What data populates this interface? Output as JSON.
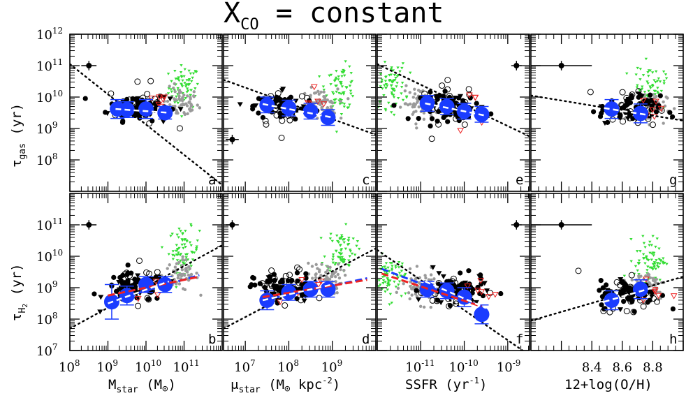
{
  "figure": {
    "title_main": "X",
    "title_sub": "CO",
    "title_rest": " = constant"
  },
  "colors": {
    "observed_filled": "#000000",
    "observed_open": "#000000",
    "grey_points": "#9a9a9a",
    "green_points": "#33dd33",
    "red_points": "#ee2222",
    "binned_means": "#1a3cff",
    "fit_blue": "#1a3cff",
    "fit_red": "#ee2222",
    "fit_white": "#ffffff",
    "fit_dotted": "#000000"
  },
  "y_axes": {
    "top": {
      "label_main": "τ",
      "label_sub": "gas",
      "label_unit": "(yr)",
      "ylim_log": [
        7,
        12
      ],
      "tick_labels": [
        {
          "exp": 8,
          "text": "10",
          "sup": "8"
        },
        {
          "exp": 9,
          "text": "10",
          "sup": "9"
        },
        {
          "exp": 10,
          "text": "10",
          "sup": "10"
        },
        {
          "exp": 11,
          "text": "10",
          "sup": "11"
        },
        {
          "exp": 12,
          "text": "10",
          "sup": "12"
        }
      ]
    },
    "bottom": {
      "label_main": "τ",
      "label_sub": "H",
      "label_subsub": "2",
      "label_unit": "(yr)",
      "ylim_log": [
        7,
        12
      ],
      "tick_labels": [
        {
          "exp": 7,
          "text": "10",
          "sup": "7"
        },
        {
          "exp": 8,
          "text": "10",
          "sup": "8"
        },
        {
          "exp": 9,
          "text": "10",
          "sup": "9"
        },
        {
          "exp": 10,
          "text": "10",
          "sup": "10"
        },
        {
          "exp": 11,
          "text": "10",
          "sup": "11"
        }
      ]
    }
  },
  "x_axes": [
    {
      "id": "mstar",
      "xlim": [
        8,
        12
      ],
      "log_ticks": true,
      "tick_labels": [
        {
          "v": 8,
          "text": "10",
          "sup": "8"
        },
        {
          "v": 9,
          "text": "10",
          "sup": "9"
        },
        {
          "v": 10,
          "text": "10",
          "sup": "10"
        },
        {
          "v": 11,
          "text": "10",
          "sup": "11"
        }
      ],
      "label": {
        "main": "M",
        "sub": "star",
        "rest": "  (M",
        "sun": "⊙",
        "end": ")"
      }
    },
    {
      "id": "mustar",
      "xlim": [
        6.5,
        10
      ],
      "log_ticks": true,
      "tick_labels": [
        {
          "v": 7,
          "text": "10",
          "sup": "7"
        },
        {
          "v": 8,
          "text": "10",
          "sup": "8"
        },
        {
          "v": 9,
          "text": "10",
          "sup": "9"
        }
      ],
      "label": {
        "main": "μ",
        "sub": "star",
        "rest": "  (M",
        "sun": "⊙",
        "end": " kpc",
        "sup": "-2",
        "end2": ")"
      }
    },
    {
      "id": "ssfr",
      "xlim": [
        -12,
        -8.5
      ],
      "log_ticks": true,
      "tick_labels": [
        {
          "v": -11,
          "text": "10",
          "sup": "-11"
        },
        {
          "v": -10,
          "text": "10",
          "sup": "-10"
        },
        {
          "v": -9,
          "text": "10",
          "sup": "-9"
        }
      ],
      "label": {
        "main": "SSFR",
        "rest": "   (yr",
        "sup": "-1",
        "end": ")"
      }
    },
    {
      "id": "oh",
      "xlim": [
        8.0,
        9.0
      ],
      "log_ticks": false,
      "tick_labels": [
        {
          "v": 8.4,
          "text": "8.4"
        },
        {
          "v": 8.6,
          "text": "8.6"
        },
        {
          "v": 8.8,
          "text": "8.8"
        }
      ],
      "label": {
        "main": "12+log(O/H)"
      }
    }
  ],
  "chart_data": [
    {
      "panel": "a",
      "type": "scatter",
      "x_var": "log M_star",
      "y_var": "log tau_gas",
      "binned_means": [
        {
          "x": 9.25,
          "y": 9.62,
          "err": 0.3
        },
        {
          "x": 9.5,
          "y": 9.6,
          "err": 0.25
        },
        {
          "x": 10.0,
          "y": 9.62,
          "err": 0.3
        },
        {
          "x": 10.5,
          "y": 9.5,
          "err": 0.2
        }
      ],
      "fit_dotted": [
        [
          8.0,
          11.05
        ],
        [
          12.0,
          7.2
        ]
      ],
      "fit_white": [
        [
          9.2,
          9.62
        ],
        [
          10.6,
          9.5
        ]
      ],
      "error_cross": {
        "x": 8.5,
        "y": 11.0,
        "xerr": 0.2,
        "yerr": 0.15
      },
      "centers": {
        "black": [
          9.8,
          9.7
        ],
        "grey": [
          10.9,
          9.8
        ],
        "green": [
          11.0,
          10.3
        ]
      }
    },
    {
      "panel": "b",
      "type": "scatter",
      "x_var": "log M_star",
      "y_var": "log tau_H2",
      "binned_means": [
        {
          "x": 9.1,
          "y": 8.55,
          "err": 0.55
        },
        {
          "x": 9.5,
          "y": 8.75,
          "err": 0.3
        },
        {
          "x": 10.0,
          "y": 9.1,
          "err": 0.25
        },
        {
          "x": 10.5,
          "y": 9.1,
          "err": 0.25
        }
      ],
      "fit_dotted": [
        [
          8.0,
          7.7
        ],
        [
          12.0,
          10.35
        ]
      ],
      "fit_blue": [
        [
          9.0,
          8.55
        ],
        [
          11.4,
          9.4
        ]
      ],
      "fit_red": [
        [
          9.0,
          8.75
        ],
        [
          11.4,
          9.35
        ]
      ],
      "fit_white": [
        [
          9.0,
          8.5
        ],
        [
          10.6,
          9.2
        ]
      ],
      "error_cross": {
        "x": 8.5,
        "y": 11.0,
        "xerr": 0.2,
        "yerr": 0.15
      },
      "centers": {
        "black": [
          9.7,
          9.0
        ],
        "grey": [
          10.9,
          9.4
        ],
        "green": [
          11.0,
          10.2
        ]
      }
    },
    {
      "panel": "c",
      "type": "scatter",
      "x_var": "log mu_star",
      "y_var": "log tau_gas",
      "binned_means": [
        {
          "x": 7.5,
          "y": 9.75,
          "err": 0.25
        },
        {
          "x": 8.0,
          "y": 9.65,
          "err": 0.25
        },
        {
          "x": 8.5,
          "y": 9.55,
          "err": 0.25
        },
        {
          "x": 8.9,
          "y": 9.35,
          "err": 0.25
        }
      ],
      "fit_dotted": [
        [
          6.5,
          10.55
        ],
        [
          10.0,
          8.8
        ]
      ],
      "fit_white": [
        [
          7.4,
          9.78
        ],
        [
          9.0,
          9.35
        ]
      ],
      "error_cross": {
        "x": 6.7,
        "y": 8.65,
        "xerr": 0.15,
        "yerr": 0.15
      },
      "centers": {
        "black": [
          7.9,
          9.7
        ],
        "grey": [
          8.7,
          9.75
        ],
        "green": [
          9.2,
          10.3
        ]
      }
    },
    {
      "panel": "d",
      "type": "scatter",
      "x_var": "log mu_star",
      "y_var": "log tau_H2",
      "binned_means": [
        {
          "x": 7.5,
          "y": 8.6,
          "err": 0.3
        },
        {
          "x": 8.0,
          "y": 8.85,
          "err": 0.25
        },
        {
          "x": 8.5,
          "y": 8.95,
          "err": 0.25
        },
        {
          "x": 8.9,
          "y": 8.95,
          "err": 0.25
        }
      ],
      "fit_dotted": [
        [
          6.5,
          7.7
        ],
        [
          10.0,
          10.25
        ]
      ],
      "fit_blue": [
        [
          7.4,
          8.6
        ],
        [
          9.8,
          9.3
        ]
      ],
      "fit_red": [
        [
          7.4,
          8.7
        ],
        [
          9.8,
          9.25
        ]
      ],
      "fit_white": [
        [
          7.4,
          8.6
        ],
        [
          9.0,
          9.1
        ]
      ],
      "error_cross": {
        "x": 6.7,
        "y": 11.0,
        "xerr": 0.15,
        "yerr": 0.15
      },
      "centers": {
        "black": [
          7.9,
          9.0
        ],
        "grey": [
          8.8,
          9.3
        ],
        "green": [
          9.2,
          10.2
        ]
      }
    },
    {
      "panel": "e",
      "type": "scatter",
      "x_var": "log SSFR",
      "y_var": "log tau_gas",
      "binned_means": [
        {
          "x": -10.85,
          "y": 9.8,
          "err": 0.25
        },
        {
          "x": -10.4,
          "y": 9.7,
          "err": 0.25
        },
        {
          "x": -10.0,
          "y": 9.55,
          "err": 0.25
        },
        {
          "x": -9.6,
          "y": 9.45,
          "err": 0.25
        }
      ],
      "fit_dotted": [
        [
          -12.0,
          11.05
        ],
        [
          -8.5,
          8.75
        ]
      ],
      "fit_white": [
        [
          -10.9,
          9.8
        ],
        [
          -9.55,
          9.42
        ]
      ],
      "error_cross": {
        "x": -8.8,
        "y": 11.0,
        "xerr": 0.12,
        "yerr": 0.15
      },
      "centers": {
        "black": [
          -10.3,
          9.7
        ],
        "grey": [
          -11.0,
          9.8
        ],
        "green": [
          -11.7,
          10.35
        ]
      }
    },
    {
      "panel": "f",
      "type": "scatter",
      "x_var": "log SSFR",
      "y_var": "log tau_H2",
      "binned_means": [
        {
          "x": -10.85,
          "y": 8.95,
          "err": 0.25
        },
        {
          "x": -10.4,
          "y": 8.9,
          "err": 0.25
        },
        {
          "x": -10.0,
          "y": 8.7,
          "err": 0.3
        },
        {
          "x": -9.6,
          "y": 8.15,
          "err": 0.3
        }
      ],
      "fit_dotted": [
        [
          -12.0,
          10.2
        ],
        [
          -8.5,
          6.85
        ]
      ],
      "fit_blue": [
        [
          -11.9,
          9.6
        ],
        [
          -9.6,
          8.4
        ]
      ],
      "fit_red": [
        [
          -11.9,
          9.45
        ],
        [
          -9.6,
          8.4
        ]
      ],
      "fit_white": [
        [
          -10.9,
          9.2
        ],
        [
          -9.5,
          8.35
        ]
      ],
      "error_cross": {
        "x": -8.8,
        "y": 11.0,
        "xerr": 0.12,
        "yerr": 0.15
      },
      "centers": {
        "black": [
          -10.2,
          8.9
        ],
        "grey": [
          -11.0,
          9.0
        ],
        "green": [
          -11.7,
          9.3
        ]
      }
    },
    {
      "panel": "g",
      "type": "scatter",
      "x_var": "12+log(O/H)",
      "y_var": "log tau_gas",
      "binned_means": [
        {
          "x": 8.53,
          "y": 9.62,
          "err": 0.3
        },
        {
          "x": 8.72,
          "y": 9.48,
          "err": 0.3
        }
      ],
      "fit_dotted": [
        [
          8.0,
          10.05
        ],
        [
          9.0,
          9.25
        ]
      ],
      "fit_white": [
        [
          8.48,
          9.65
        ],
        [
          8.78,
          9.42
        ]
      ],
      "error_cross": {
        "x": 8.2,
        "y": 11.0,
        "xerr": 0.2,
        "yerr": 0.15
      },
      "centers": {
        "black": [
          8.65,
          9.6
        ],
        "grey": [
          8.77,
          9.7
        ],
        "green": [
          8.78,
          10.3
        ]
      }
    },
    {
      "panel": "h",
      "type": "scatter",
      "x_var": "12+log(O/H)",
      "y_var": "log tau_H2",
      "binned_means": [
        {
          "x": 8.53,
          "y": 8.6,
          "err": 0.3
        },
        {
          "x": 8.72,
          "y": 8.95,
          "err": 0.3
        }
      ],
      "fit_dotted": [
        [
          8.0,
          7.95
        ],
        [
          9.0,
          9.35
        ]
      ],
      "fit_white": [
        [
          8.48,
          8.55
        ],
        [
          8.8,
          9.0
        ]
      ],
      "error_cross": {
        "x": 8.2,
        "y": 11.0,
        "xerr": 0.2,
        "yerr": 0.15
      },
      "centers": {
        "black": [
          8.65,
          8.8
        ],
        "grey": [
          8.77,
          9.1
        ],
        "green": [
          8.78,
          9.9
        ]
      }
    }
  ]
}
